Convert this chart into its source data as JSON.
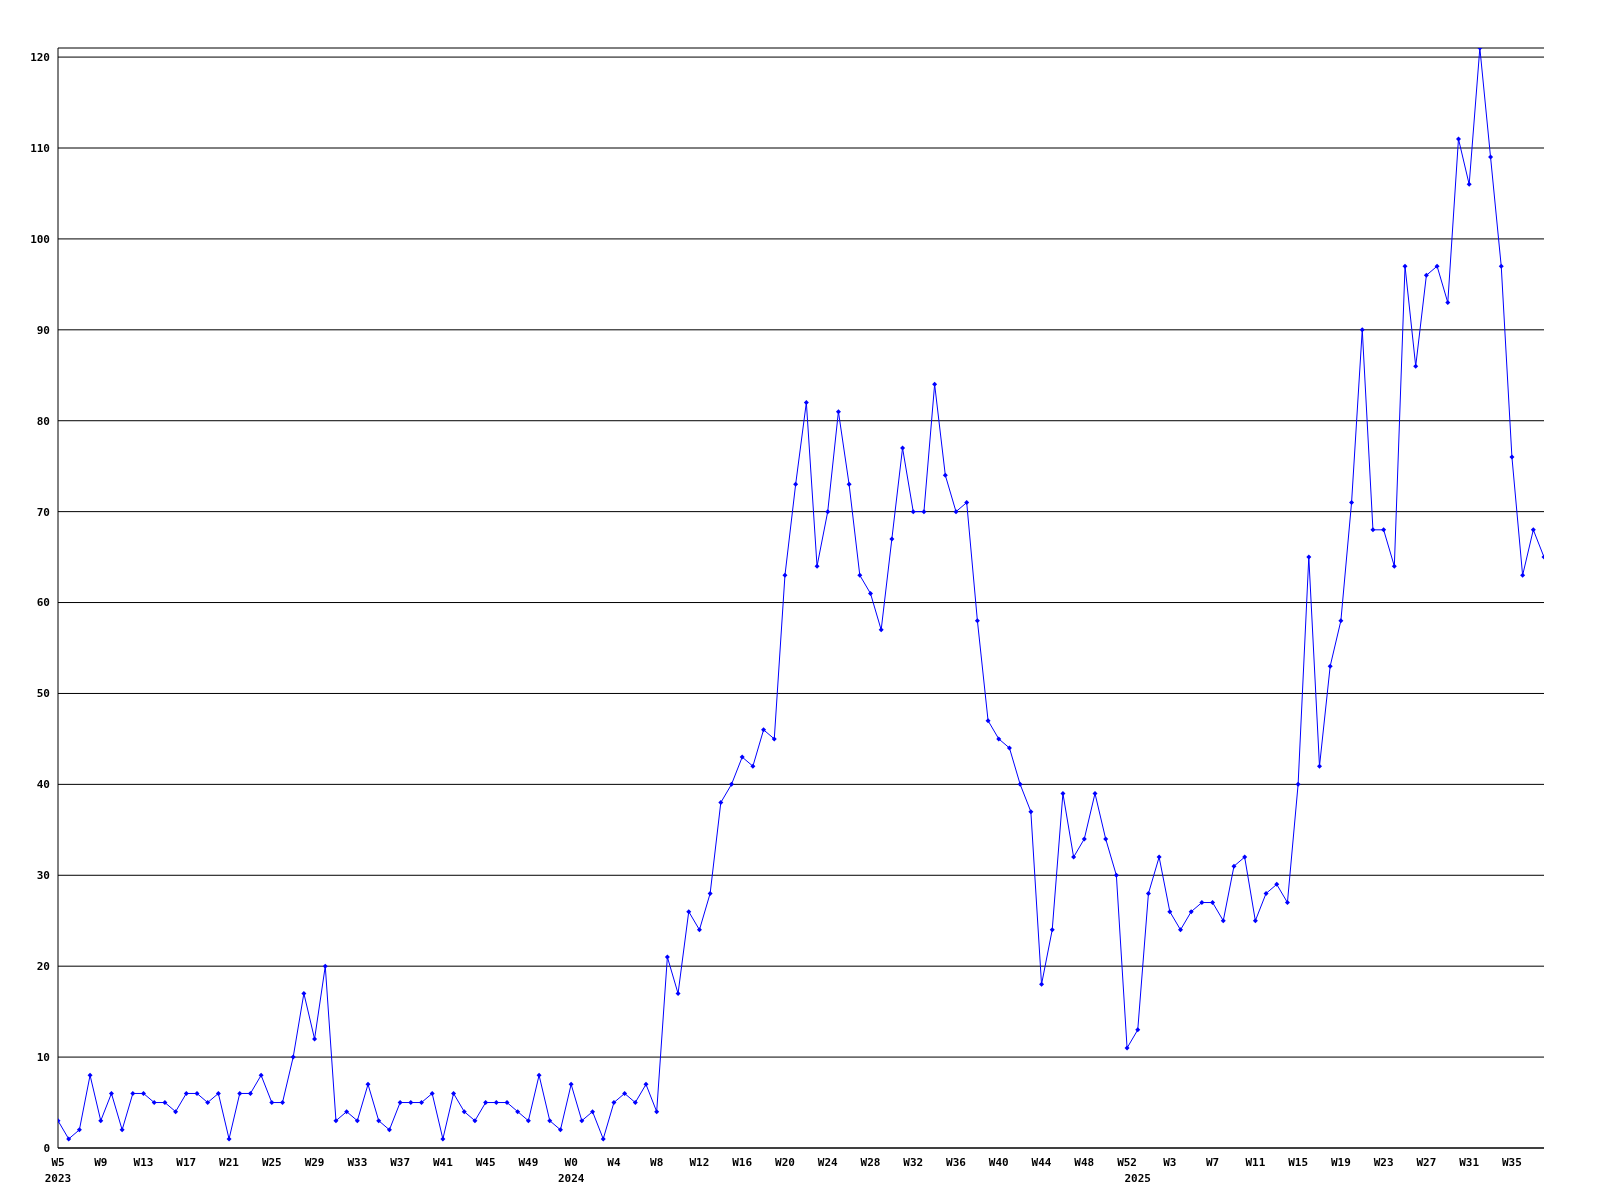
{
  "chart_data": {
    "type": "line",
    "categories": [
      "W5\n2023",
      null,
      null,
      null,
      "W9",
      null,
      null,
      null,
      "W13",
      null,
      null,
      null,
      "W17",
      null,
      null,
      null,
      "W21",
      null,
      null,
      null,
      "W25",
      null,
      null,
      null,
      "W29",
      null,
      null,
      null,
      "W33",
      null,
      null,
      null,
      "W37",
      null,
      null,
      null,
      "W41",
      null,
      null,
      null,
      "W45",
      null,
      null,
      null,
      "W49",
      null,
      null,
      null,
      "W0\n2024",
      null,
      null,
      null,
      "W4",
      null,
      null,
      null,
      "W8",
      null,
      null,
      null,
      "W12",
      null,
      null,
      null,
      "W16",
      null,
      null,
      null,
      "W20",
      null,
      null,
      null,
      "W24",
      null,
      null,
      null,
      "W28",
      null,
      null,
      null,
      "W32",
      null,
      null,
      null,
      "W36",
      null,
      null,
      null,
      "W40",
      null,
      null,
      null,
      "W44",
      null,
      null,
      null,
      "W48",
      null,
      null,
      null,
      "W52",
      "\n2025",
      null,
      null,
      "W3",
      null,
      null,
      null,
      "W7",
      null,
      null,
      null,
      "W11",
      null,
      null,
      null,
      "W15",
      null,
      null,
      null,
      "W19",
      null,
      null,
      null,
      "W23",
      null,
      null,
      null,
      "W27",
      null,
      null,
      null,
      "W31",
      null,
      null,
      null,
      "W35",
      null,
      null,
      null
    ],
    "series": [
      {
        "color": "#0000ff",
        "values": [
          3,
          1,
          2,
          8,
          3,
          6,
          2,
          6,
          6,
          5,
          5,
          4,
          6,
          6,
          5,
          6,
          1,
          6,
          6,
          8,
          5,
          5,
          10,
          17,
          12,
          20,
          3,
          4,
          3,
          7,
          3,
          2,
          5,
          5,
          5,
          6,
          1,
          6,
          4,
          3,
          5,
          5,
          5,
          4,
          3,
          8,
          3,
          2,
          7,
          3,
          4,
          1,
          5,
          6,
          5,
          7,
          4,
          21,
          17,
          26,
          24,
          28,
          38,
          40,
          43,
          42,
          46,
          45,
          63,
          73,
          82,
          64,
          70,
          81,
          73,
          63,
          61,
          57,
          67,
          77,
          70,
          70,
          84,
          74,
          70,
          71,
          58,
          47,
          45,
          44,
          40,
          37,
          18,
          24,
          39,
          32,
          34,
          39,
          34,
          30,
          11,
          13,
          28,
          32,
          26,
          24,
          26,
          27,
          27,
          25,
          31,
          32,
          25,
          28,
          29,
          27,
          40,
          65,
          42,
          53,
          58,
          71,
          90,
          68,
          68,
          64,
          97,
          86,
          96,
          97,
          93,
          111,
          106,
          121,
          109,
          97,
          76,
          63,
          68,
          65
        ]
      }
    ],
    "ylim": [
      0,
      121
    ],
    "yticks": [
      0,
      10,
      20,
      30,
      40,
      50,
      60,
      70,
      80,
      90,
      100,
      110,
      120
    ],
    "grid": "y",
    "marker": "diamond",
    "line_style": "solid"
  }
}
